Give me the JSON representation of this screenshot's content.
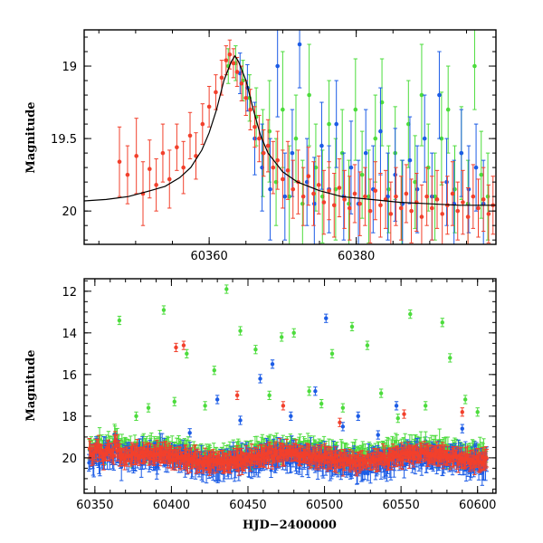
{
  "colors": {
    "r": "#f2402c",
    "g": "#4cdc3c",
    "b": "#1c5ce6",
    "axis": "#000000",
    "model": "#000000"
  },
  "chart_data": [
    {
      "panel": "top",
      "type": "scatter",
      "title": "",
      "xlabel": "",
      "ylabel": "Magnitude",
      "xlim": [
        60343,
        60399
      ],
      "ylim": [
        20.23,
        18.75
      ],
      "y_inverted": true,
      "xticks": [
        60360,
        60380
      ],
      "xtick_labels": [
        "60360",
        "60380"
      ],
      "yticks": [
        19,
        19.5,
        20
      ],
      "ytick_labels": [
        "19",
        "19.5",
        "20"
      ],
      "model_curve": {
        "x": [
          60343,
          60346,
          60349,
          60352,
          60354,
          60356,
          60357.5,
          60359,
          60360,
          60361,
          60362,
          60363,
          60363.5,
          60364,
          60365,
          60366,
          60367,
          60368,
          60370,
          60372,
          60375,
          60378,
          60382,
          60386,
          60390,
          60394,
          60399
        ],
        "y": [
          19.93,
          19.92,
          19.9,
          19.86,
          19.83,
          19.77,
          19.7,
          19.58,
          19.46,
          19.3,
          19.1,
          18.97,
          18.93,
          18.97,
          19.1,
          19.3,
          19.48,
          19.6,
          19.73,
          19.8,
          19.86,
          19.9,
          19.92,
          19.94,
          19.95,
          19.96,
          19.96
        ]
      },
      "series": [
        {
          "band": "r",
          "points": [
            [
              60347.8,
              19.66,
              0.24
            ],
            [
              60348.9,
              19.75,
              0.2
            ],
            [
              60350.1,
              19.62,
              0.26
            ],
            [
              60351.0,
              19.88,
              0.22
            ],
            [
              60351.9,
              19.71,
              0.2
            ],
            [
              60352.8,
              19.82,
              0.18
            ],
            [
              60353.7,
              19.6,
              0.2
            ],
            [
              60354.6,
              19.78,
              0.2
            ],
            [
              60355.6,
              19.56,
              0.16
            ],
            [
              60356.5,
              19.7,
              0.18
            ],
            [
              60357.4,
              19.48,
              0.16
            ],
            [
              60358.2,
              19.62,
              0.16
            ],
            [
              60359.1,
              19.4,
              0.14
            ],
            [
              60360.0,
              19.28,
              0.14
            ],
            [
              60360.9,
              19.18,
              0.12
            ],
            [
              60361.7,
              19.08,
              0.12
            ],
            [
              60362.3,
              18.96,
              0.1
            ],
            [
              60362.8,
              18.92,
              0.1
            ],
            [
              60363.3,
              18.98,
              0.1
            ],
            [
              60363.8,
              19.04,
              0.1
            ],
            [
              60364.4,
              19.12,
              0.12
            ],
            [
              60365.0,
              19.22,
              0.12
            ],
            [
              60365.6,
              19.3,
              0.14
            ],
            [
              60366.2,
              19.42,
              0.14
            ],
            [
              60366.8,
              19.5,
              0.16
            ],
            [
              60367.4,
              19.6,
              0.16
            ],
            [
              60368.0,
              19.55,
              0.18
            ],
            [
              60368.7,
              19.7,
              0.18
            ],
            [
              60369.3,
              19.65,
              0.2
            ],
            [
              60370.0,
              19.78,
              0.2
            ],
            [
              60370.7,
              19.72,
              0.2
            ],
            [
              60371.4,
              19.85,
              0.2
            ],
            [
              60372.1,
              19.8,
              0.22
            ],
            [
              60372.8,
              19.9,
              0.2
            ],
            [
              60373.5,
              19.76,
              0.2
            ],
            [
              60374.2,
              19.88,
              0.22
            ],
            [
              60374.9,
              19.82,
              0.2
            ],
            [
              60375.6,
              19.94,
              0.22
            ],
            [
              60376.3,
              19.86,
              0.2
            ],
            [
              60377.0,
              19.96,
              0.22
            ],
            [
              60377.7,
              19.84,
              0.2
            ],
            [
              60378.4,
              19.92,
              0.2
            ],
            [
              60379.1,
              19.98,
              0.22
            ],
            [
              60379.8,
              19.88,
              0.2
            ],
            [
              60380.5,
              19.95,
              0.22
            ],
            [
              60381.2,
              19.9,
              0.2
            ],
            [
              60381.9,
              20.0,
              0.22
            ],
            [
              60382.6,
              19.86,
              0.2
            ],
            [
              60383.3,
              19.96,
              0.22
            ],
            [
              60384.0,
              19.92,
              0.2
            ],
            [
              60384.7,
              20.02,
              0.22
            ],
            [
              60385.4,
              19.9,
              0.2
            ],
            [
              60386.1,
              19.98,
              0.22
            ],
            [
              60386.8,
              19.88,
              0.2
            ],
            [
              60387.5,
              20.0,
              0.22
            ],
            [
              60388.2,
              19.94,
              0.2
            ],
            [
              60388.9,
              20.04,
              0.22
            ],
            [
              60389.6,
              19.9,
              0.2
            ],
            [
              60390.3,
              19.98,
              0.22
            ],
            [
              60391.0,
              19.92,
              0.2
            ],
            [
              60391.7,
              20.02,
              0.22
            ],
            [
              60392.4,
              19.96,
              0.2
            ],
            [
              60393.1,
              19.88,
              0.22
            ],
            [
              60393.8,
              20.0,
              0.2
            ],
            [
              60394.5,
              19.94,
              0.22
            ],
            [
              60395.2,
              20.04,
              0.2
            ],
            [
              60395.9,
              19.9,
              0.22
            ],
            [
              60396.6,
              19.98,
              0.2
            ],
            [
              60397.3,
              19.92,
              0.22
            ],
            [
              60398.0,
              20.02,
              0.2
            ],
            [
              60398.6,
              19.96,
              0.2
            ]
          ]
        },
        {
          "band": "g",
          "points": [
            [
              60362.6,
              19.0,
              0.12
            ],
            [
              60363.6,
              18.98,
              0.12
            ],
            [
              60364.6,
              19.1,
              0.14
            ],
            [
              60365.5,
              19.22,
              0.16
            ],
            [
              60366.4,
              19.35,
              0.2
            ],
            [
              60367.3,
              19.6,
              0.3
            ],
            [
              60368.2,
              19.45,
              0.35
            ],
            [
              60369.1,
              19.8,
              0.3
            ],
            [
              60370.0,
              19.3,
              0.4
            ],
            [
              60370.9,
              19.9,
              0.35
            ],
            [
              60371.8,
              19.5,
              0.3
            ],
            [
              60372.7,
              19.95,
              0.3
            ],
            [
              60373.6,
              19.2,
              0.35
            ],
            [
              60374.5,
              19.7,
              0.3
            ],
            [
              60375.4,
              19.9,
              0.32
            ],
            [
              60376.3,
              19.4,
              0.3
            ],
            [
              60377.2,
              19.85,
              0.35
            ],
            [
              60378.1,
              19.6,
              0.3
            ],
            [
              60379.0,
              19.95,
              0.3
            ],
            [
              60379.9,
              19.3,
              0.35
            ],
            [
              60380.8,
              19.75,
              0.3
            ],
            [
              60381.7,
              19.9,
              0.32
            ],
            [
              60382.6,
              19.5,
              0.3
            ],
            [
              60383.5,
              19.25,
              0.3
            ],
            [
              60384.4,
              19.85,
              0.3
            ],
            [
              60385.3,
              19.6,
              0.32
            ],
            [
              60386.2,
              19.95,
              0.3
            ],
            [
              60387.1,
              19.4,
              0.3
            ],
            [
              60388.0,
              19.8,
              0.32
            ],
            [
              60388.9,
              19.2,
              0.35
            ],
            [
              60389.8,
              19.7,
              0.3
            ],
            [
              60390.7,
              19.9,
              0.3
            ],
            [
              60391.6,
              19.5,
              0.32
            ],
            [
              60392.5,
              19.3,
              0.3
            ],
            [
              60393.4,
              19.85,
              0.3
            ],
            [
              60394.3,
              19.6,
              0.32
            ],
            [
              60395.2,
              19.95,
              0.3
            ],
            [
              60396.1,
              19.0,
              0.3
            ],
            [
              60397.0,
              19.75,
              0.3
            ],
            [
              60397.9,
              19.9,
              0.3
            ]
          ]
        },
        {
          "band": "b",
          "points": [
            [
              60364.2,
              19.05,
              0.14
            ],
            [
              60365.2,
              19.15,
              0.16
            ],
            [
              60366.2,
              19.5,
              0.25
            ],
            [
              60367.2,
              19.7,
              0.3
            ],
            [
              60368.3,
              19.85,
              0.35
            ],
            [
              60369.3,
              19.0,
              0.35
            ],
            [
              60370.3,
              19.9,
              0.3
            ],
            [
              60371.3,
              19.6,
              0.3
            ],
            [
              60372.3,
              18.85,
              0.3
            ],
            [
              60373.3,
              19.8,
              0.3
            ],
            [
              60374.3,
              19.95,
              0.32
            ],
            [
              60375.3,
              19.55,
              0.3
            ],
            [
              60376.3,
              19.85,
              0.3
            ],
            [
              60377.3,
              19.4,
              0.3
            ],
            [
              60378.3,
              19.9,
              0.3
            ],
            [
              60379.3,
              19.7,
              0.32
            ],
            [
              60380.3,
              19.95,
              0.3
            ],
            [
              60381.3,
              19.6,
              0.3
            ],
            [
              60382.3,
              19.85,
              0.3
            ],
            [
              60383.3,
              19.45,
              0.3
            ],
            [
              60384.3,
              19.9,
              0.3
            ],
            [
              60385.3,
              19.75,
              0.32
            ],
            [
              60386.3,
              19.95,
              0.3
            ],
            [
              60387.3,
              19.65,
              0.3
            ],
            [
              60388.3,
              19.85,
              0.3
            ],
            [
              60389.3,
              19.5,
              0.3
            ],
            [
              60390.3,
              19.9,
              0.3
            ],
            [
              60391.3,
              19.2,
              0.3
            ],
            [
              60392.3,
              19.8,
              0.3
            ],
            [
              60393.3,
              19.95,
              0.3
            ],
            [
              60394.3,
              19.6,
              0.3
            ],
            [
              60395.3,
              19.85,
              0.3
            ],
            [
              60396.3,
              19.7,
              0.3
            ],
            [
              60397.3,
              19.95,
              0.3
            ]
          ]
        }
      ]
    },
    {
      "panel": "bottom",
      "type": "scatter",
      "title": "",
      "xlabel": "HJD−2400000",
      "ylabel": "Magnitude",
      "xlim": [
        60343,
        60612
      ],
      "ylim": [
        21.7,
        11.4
      ],
      "y_inverted": true,
      "xticks": [
        60350,
        60400,
        60450,
        60500,
        60550,
        60600
      ],
      "xtick_labels": [
        "60350",
        "60400",
        "60450",
        "60500",
        "60550",
        "60600"
      ],
      "yticks": [
        12,
        14,
        16,
        18,
        20
      ],
      "ytick_labels": [
        "12",
        "14",
        "16",
        "18",
        "20"
      ],
      "outliers": {
        "g": [
          [
            60366,
            13.4
          ],
          [
            60377,
            18.0
          ],
          [
            60385,
            17.6
          ],
          [
            60395,
            12.9
          ],
          [
            60402,
            17.3
          ],
          [
            60410,
            15.0
          ],
          [
            60422,
            17.5
          ],
          [
            60428,
            15.8
          ],
          [
            60436,
            11.9
          ],
          [
            60445,
            13.9
          ],
          [
            60455,
            14.8
          ],
          [
            60464,
            17.0
          ],
          [
            60472,
            14.2
          ],
          [
            60480,
            14.0
          ],
          [
            60490,
            16.8
          ],
          [
            60498,
            17.4
          ],
          [
            60505,
            15.0
          ],
          [
            60512,
            17.6
          ],
          [
            60518,
            13.7
          ],
          [
            60528,
            14.6
          ],
          [
            60537,
            16.9
          ],
          [
            60548,
            18.1
          ],
          [
            60556,
            13.1
          ],
          [
            60566,
            17.5
          ],
          [
            60577,
            13.5
          ],
          [
            60582,
            15.2
          ],
          [
            60592,
            17.2
          ],
          [
            60600,
            17.8
          ]
        ],
        "r": [
          [
            60403,
            14.7
          ],
          [
            60408,
            14.6
          ],
          [
            60443,
            17.0
          ],
          [
            60473,
            17.5
          ],
          [
            60510,
            18.3
          ],
          [
            60552,
            17.9
          ],
          [
            60590,
            17.8
          ]
        ],
        "b": [
          [
            60395,
            19.5
          ],
          [
            60412,
            18.8
          ],
          [
            60430,
            17.2
          ],
          [
            60445,
            18.2
          ],
          [
            60458,
            16.2
          ],
          [
            60466,
            15.5
          ],
          [
            60478,
            18.0
          ],
          [
            60494,
            16.8
          ],
          [
            60501,
            13.3
          ],
          [
            60512,
            18.5
          ],
          [
            60522,
            18.0
          ],
          [
            60535,
            18.9
          ],
          [
            60547,
            17.5
          ],
          [
            60566,
            19.2
          ],
          [
            60590,
            18.6
          ],
          [
            60598,
            19.4
          ]
        ]
      }
    }
  ]
}
